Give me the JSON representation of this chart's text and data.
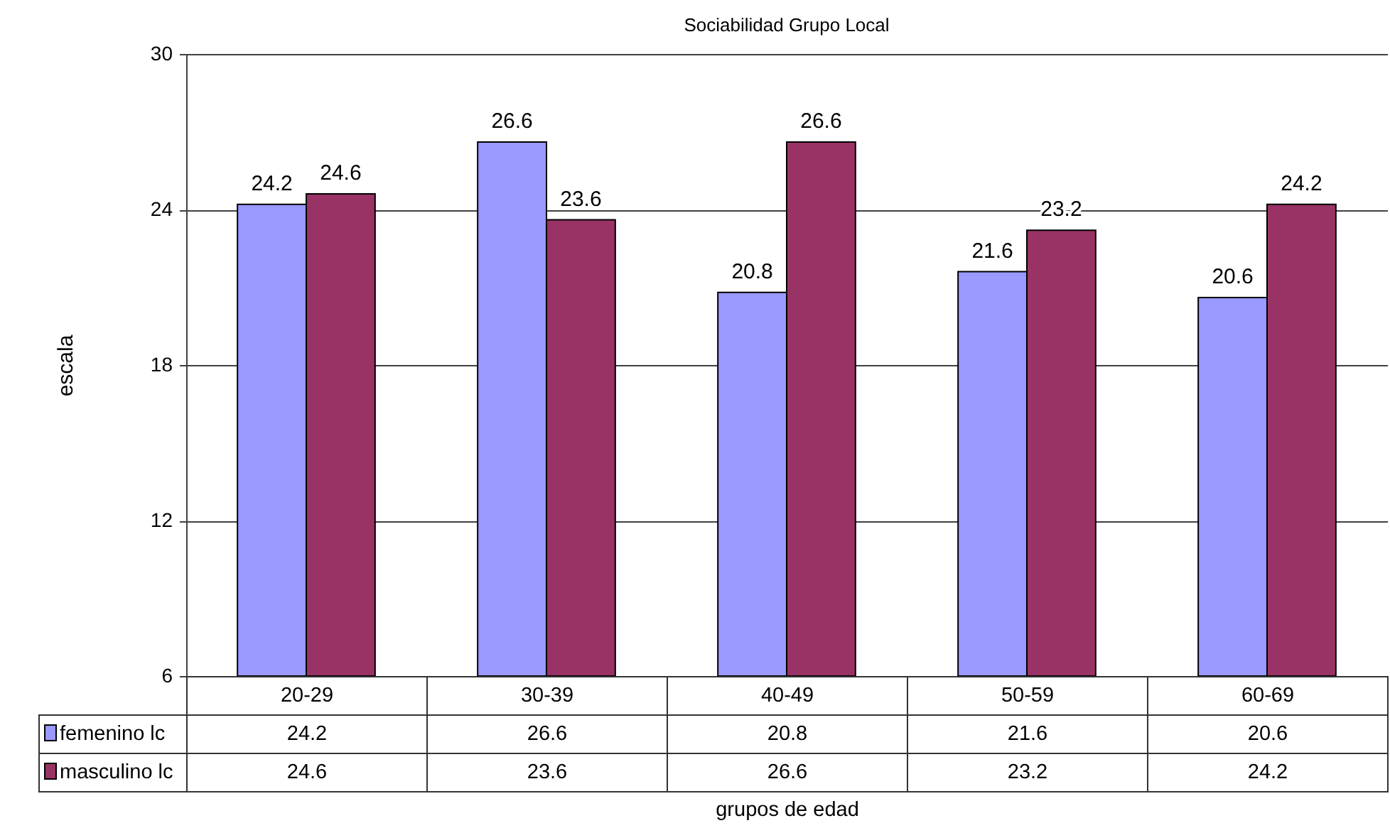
{
  "chart_data": {
    "type": "bar",
    "title": "Sociabilidad Grupo Local",
    "xlabel": "grupos de edad",
    "ylabel": "escala",
    "categories": [
      "20-29",
      "30-39",
      "40-49",
      "50-59",
      "60-69"
    ],
    "series": [
      {
        "name": "femenino lc",
        "color": "#9999ff",
        "values": [
          24.2,
          26.6,
          20.8,
          21.6,
          20.6
        ],
        "value_labels": [
          "24.2",
          "26.6",
          "20.8",
          "21.6",
          "20.6"
        ]
      },
      {
        "name": "masculino lc",
        "color": "#993366",
        "values": [
          24.6,
          23.6,
          26.6,
          23.2,
          24.2
        ],
        "value_labels": [
          "24.6",
          "23.6",
          "26.6",
          "23.2",
          "24.2"
        ]
      }
    ],
    "annotations": [
      "24.2",
      "26.6",
      "20.8",
      "21.6",
      "20.6",
      "24.6",
      "23.6",
      "26.6",
      "23.2",
      "24.2"
    ],
    "ylim": [
      6,
      30
    ],
    "yticks": [
      6,
      12,
      18,
      24,
      30
    ],
    "grid": "y",
    "legend": "bottom left",
    "data_labels": true
  }
}
